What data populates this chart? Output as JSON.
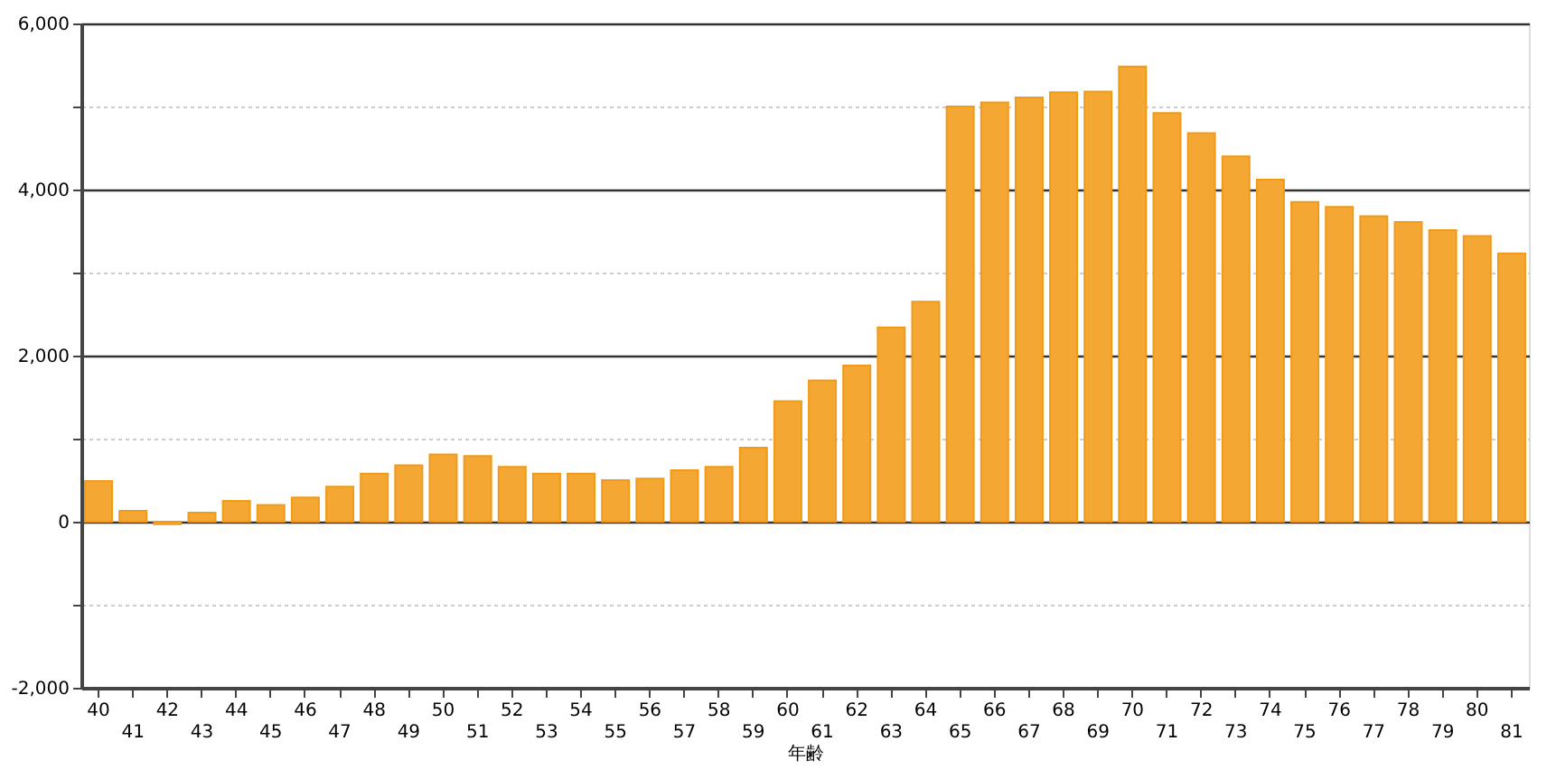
{
  "chart_data": {
    "type": "bar",
    "xlabel": "年齢",
    "categories": [
      "40",
      "41",
      "42",
      "43",
      "44",
      "45",
      "46",
      "47",
      "48",
      "49",
      "50",
      "51",
      "52",
      "53",
      "54",
      "55",
      "56",
      "57",
      "58",
      "59",
      "60",
      "61",
      "62",
      "63",
      "64",
      "65",
      "66",
      "67",
      "68",
      "69",
      "70",
      "71",
      "72",
      "73",
      "74",
      "75",
      "76",
      "77",
      "78",
      "79",
      "80",
      "81"
    ],
    "values": [
      490,
      130,
      -30,
      110,
      250,
      200,
      290,
      420,
      580,
      680,
      810,
      790,
      660,
      580,
      580,
      500,
      520,
      620,
      660,
      890,
      1450,
      1700,
      1880,
      2340,
      2650,
      5000,
      5050,
      5110,
      5170,
      5180,
      5480,
      4920,
      4680,
      4400,
      4120,
      3850,
      3790,
      3680,
      3610,
      3510,
      3440,
      3230
    ],
    "color": "#f5a733",
    "ylim": [
      -2000,
      6000
    ],
    "yticks": [
      {
        "value": -2000,
        "label": "-2,000"
      },
      {
        "value": -1000,
        "label": null
      },
      0,
      {
        "value": 1000,
        "label": null
      },
      {
        "value": 2000,
        "label": "2,000"
      },
      {
        "value": 3000,
        "label": null
      },
      {
        "value": 4000,
        "label": "4,000"
      },
      {
        "value": 5000,
        "label": null
      },
      {
        "value": 6000,
        "label": "6,000"
      }
    ],
    "grid": true
  }
}
